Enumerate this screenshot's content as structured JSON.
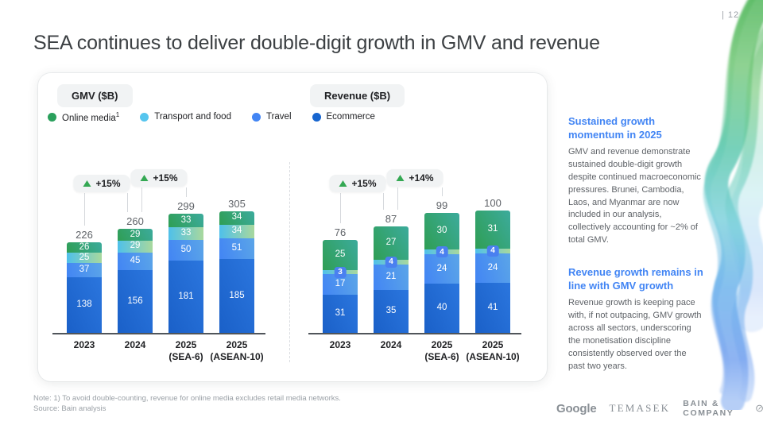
{
  "header": {
    "page_number": "| 12",
    "title": "SEA continues to deliver double-digit growth in GMV and revenue"
  },
  "legend": [
    {
      "label": "Online media",
      "sup": "1",
      "dot_color": "#2aa05c",
      "gradient_from": "#2f9e54",
      "gradient_to": "#3cab9c",
      "gradient_angle": 60
    },
    {
      "label": "Transport and food",
      "sup": "",
      "dot_color": "#56c5ee",
      "gradient_from": "#4fc0ea",
      "gradient_to": "#a8d89d",
      "gradient_angle": 90
    },
    {
      "label": "Travel",
      "sup": "",
      "dot_color": "#4285f4",
      "gradient_from": "#4285f4",
      "gradient_to": "#5ba5e8",
      "gradient_angle": 75
    },
    {
      "label": "Ecommerce",
      "sup": "",
      "dot_color": "#1765cf",
      "gradient_from": "#1a60c8",
      "gradient_to": "#2b76de",
      "gradient_angle": 65
    }
  ],
  "chart_data": [
    {
      "type": "bar",
      "stacked": true,
      "title": "GMV ($B)",
      "categories": [
        "2023",
        "2024",
        "2025\n(SEA-6)",
        "2025\n(ASEAN-10)"
      ],
      "series": [
        {
          "name": "Online media",
          "values": [
            26,
            29,
            33,
            34
          ]
        },
        {
          "name": "Transport and food",
          "values": [
            25,
            29,
            33,
            34
          ]
        },
        {
          "name": "Travel",
          "values": [
            37,
            45,
            50,
            51
          ]
        },
        {
          "name": "Ecommerce",
          "values": [
            138,
            156,
            181,
            185
          ]
        }
      ],
      "totals": [
        226,
        260,
        299,
        305
      ],
      "growth_badges": [
        "+15%",
        "+15%"
      ],
      "ylim": [
        0,
        305
      ],
      "grid": false,
      "legend_position": "top"
    },
    {
      "type": "bar",
      "stacked": true,
      "title": "Revenue ($B)",
      "categories": [
        "2023",
        "2024",
        "2025\n(SEA-6)",
        "2025\n(ASEAN-10)"
      ],
      "series": [
        {
          "name": "Online media",
          "values": [
            25,
            27,
            30,
            31
          ]
        },
        {
          "name": "Transport and food",
          "values": [
            3,
            4,
            4,
            4
          ]
        },
        {
          "name": "Travel",
          "values": [
            17,
            21,
            24,
            24
          ]
        },
        {
          "name": "Ecommerce",
          "values": [
            31,
            35,
            40,
            41
          ]
        }
      ],
      "totals": [
        76,
        87,
        99,
        100
      ],
      "growth_badges": [
        "+15%",
        "+14%"
      ],
      "ylim": [
        0,
        100
      ],
      "grid": false,
      "legend_position": "top"
    }
  ],
  "sidebar": {
    "blocks": [
      {
        "heading": "Sustained growth momentum in 2025",
        "body": "GMV and revenue demonstrate sustained double-digit growth despite continued macroeconomic pressures. Brunei, Cambodia, Laos, and Myanmar are now included in our analysis, collectively accounting for ~2% of total GMV."
      },
      {
        "heading": "Revenue growth remains in line with GMV growth",
        "body": "Revenue growth is keeping pace with, if not outpacing, GMV growth across all sectors, underscoring the monetisation discipline consistently observed over the past two years."
      }
    ]
  },
  "footer": {
    "note": "Note: 1) To avoid double-counting, revenue for online media excludes retail media networks.",
    "source": "Source: Bain analysis",
    "logos": {
      "google": "Google",
      "temasek": "TEMASEK",
      "bain": "BAIN & COMPANY"
    }
  },
  "colors": {
    "accent_blue": "#4285f4",
    "badge_green": "#34a853",
    "text_dark": "#202124",
    "text_gray": "#5f6368",
    "text_light": "#9aa0a6",
    "pill_bg": "#f1f3f4"
  }
}
